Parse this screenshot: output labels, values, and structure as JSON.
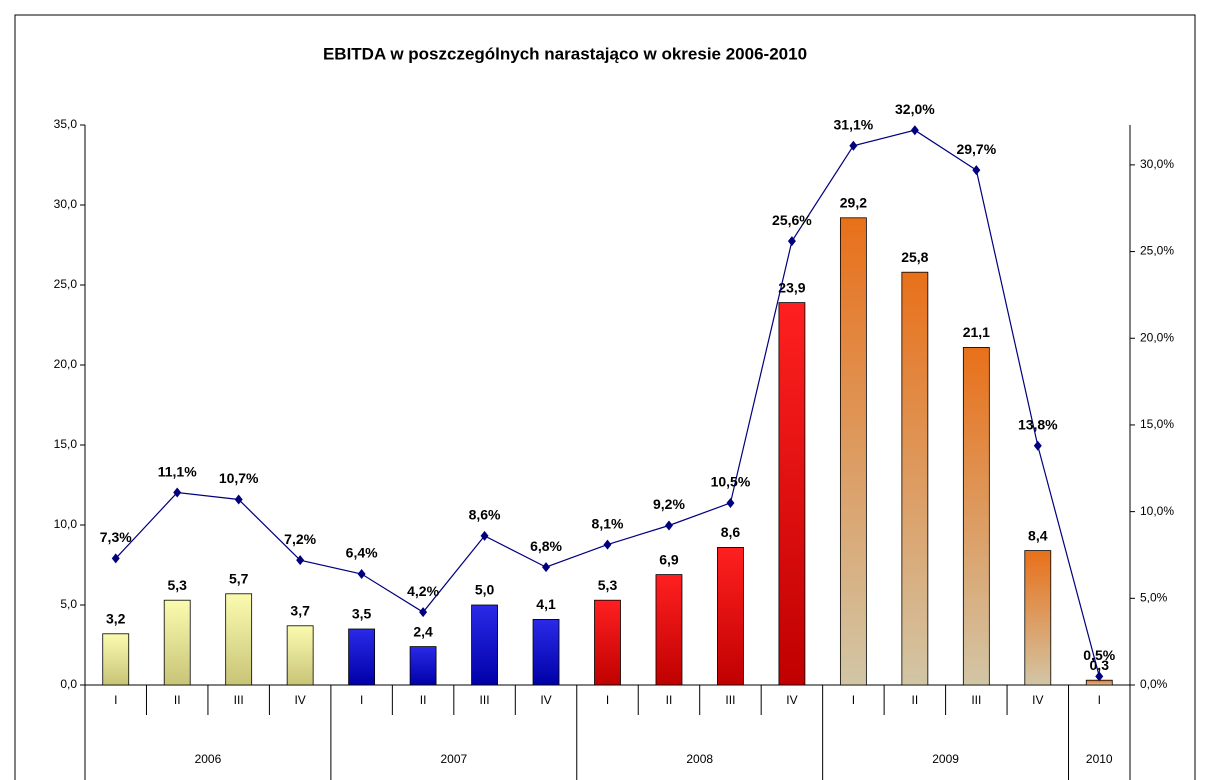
{
  "chart_data": {
    "type": "bar",
    "title": "EBITDA w poszczególnych narastająco w okresie 2006-2010",
    "groups": [
      {
        "label": "2006",
        "categories": [
          "I",
          "II",
          "III",
          "IV"
        ],
        "colors": [
          "#fbfbb0",
          "#c8c478"
        ]
      },
      {
        "label": "2007",
        "categories": [
          "I",
          "II",
          "III",
          "IV"
        ],
        "colors": [
          "#2a2ae8",
          "#0000a8"
        ]
      },
      {
        "label": "2008",
        "categories": [
          "I",
          "II",
          "III",
          "IV"
        ],
        "colors": [
          "#ff2020",
          "#c00000"
        ]
      },
      {
        "label": "2009",
        "categories": [
          "I",
          "II",
          "III",
          "IV"
        ],
        "colors": [
          "#e8701a",
          "#d2c6a6"
        ]
      },
      {
        "label": "2010",
        "categories": [
          "I"
        ],
        "colors": [
          "#e8701a",
          "#d2c6a6"
        ]
      }
    ],
    "series": [
      {
        "type": "bar",
        "values": [
          3.2,
          5.3,
          5.7,
          3.7,
          3.5,
          2.4,
          5.0,
          4.1,
          5.3,
          6.9,
          8.6,
          23.9,
          29.2,
          25.8,
          21.1,
          8.4,
          0.3
        ],
        "value_labels": [
          "3,2",
          "5,3",
          "5,7",
          "3,7",
          "3,5",
          "2,4",
          "5,0",
          "4,1",
          "5,3",
          "6,9",
          "8,6",
          "23,9",
          "29,2",
          "25,8",
          "21,1",
          "8,4",
          "0,3"
        ]
      },
      {
        "type": "line",
        "axis": "y2",
        "color": "#00007f",
        "values": [
          7.3,
          11.1,
          10.7,
          7.2,
          6.4,
          4.2,
          8.6,
          6.8,
          8.1,
          9.2,
          10.5,
          25.6,
          31.1,
          32.0,
          29.7,
          13.8,
          0.5
        ],
        "value_labels": [
          "7,3%",
          "11,1%",
          "10,7%",
          "7,2%",
          "6,4%",
          "4,2%",
          "8,6%",
          "6,8%",
          "8,1%",
          "9,2%",
          "10,5%",
          "25,6%",
          "31,1%",
          "32,0%",
          "29,7%",
          "13,8%",
          "0,5%"
        ]
      }
    ],
    "ylim": [
      0,
      35
    ],
    "yticks": [
      {
        "value": 0,
        "label": "0,0"
      },
      {
        "value": 5,
        "label": "5,0"
      },
      {
        "value": 10,
        "label": "10,0"
      },
      {
        "value": 15,
        "label": "15,0"
      },
      {
        "value": 20,
        "label": "20,0"
      },
      {
        "value": 25,
        "label": "25,0"
      },
      {
        "value": 30,
        "label": "30,0"
      },
      {
        "value": 35,
        "label": "35,0"
      }
    ],
    "y2lim": [
      0,
      32.3
    ],
    "y2ticks": [
      {
        "value": 0,
        "label": "0,0%"
      },
      {
        "value": 5,
        "label": "5,0%"
      },
      {
        "value": 10,
        "label": "10,0%"
      },
      {
        "value": 15,
        "label": "15,0%"
      },
      {
        "value": 20,
        "label": "20,0%"
      },
      {
        "value": 25,
        "label": "25,0%"
      },
      {
        "value": 30,
        "label": "30,0%"
      }
    ]
  }
}
